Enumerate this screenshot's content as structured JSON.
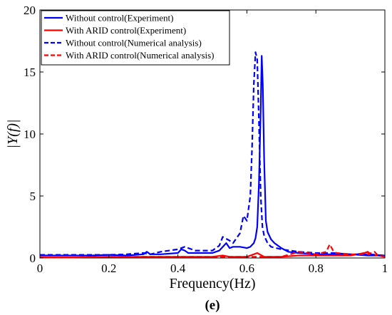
{
  "chart_data": {
    "type": "line",
    "xlabel": "Frequency(Hz)",
    "ylabel": "|Y(f)|",
    "caption": "(e)",
    "xlim": [
      0,
      1
    ],
    "ylim": [
      0,
      20
    ],
    "xticks": [
      0,
      0.2,
      0.4,
      0.6,
      0.8,
      1
    ],
    "yticks": [
      0,
      5,
      10,
      15,
      20
    ],
    "xtick_labels": [
      "0",
      "0.2",
      "0.4",
      "0.6",
      "0.8",
      "1"
    ],
    "ytick_labels": [
      "0",
      "5",
      "10",
      "15",
      "20"
    ],
    "grid": false,
    "legend_position": "top-left",
    "series": [
      {
        "name": "Without control(Experiment)",
        "color": "#0000ff",
        "dash": "solid",
        "x": [
          0,
          0.05,
          0.1,
          0.15,
          0.2,
          0.25,
          0.3,
          0.31,
          0.32,
          0.35,
          0.4,
          0.41,
          0.42,
          0.43,
          0.45,
          0.5,
          0.52,
          0.54,
          0.55,
          0.56,
          0.58,
          0.6,
          0.61,
          0.62,
          0.625,
          0.63,
          0.635,
          0.64,
          0.643,
          0.646,
          0.65,
          0.655,
          0.66,
          0.67,
          0.68,
          0.7,
          0.72,
          0.75,
          0.8,
          0.85,
          0.9,
          0.95,
          1
        ],
        "y": [
          0.2,
          0.2,
          0.2,
          0.2,
          0.25,
          0.2,
          0.3,
          0.5,
          0.3,
          0.3,
          0.4,
          0.7,
          0.6,
          0.4,
          0.4,
          0.4,
          0.6,
          1.2,
          0.8,
          0.9,
          0.9,
          0.8,
          0.9,
          1.2,
          1.6,
          2.5,
          6,
          12,
          16.3,
          14,
          8,
          3,
          2.1,
          1.5,
          1.2,
          0.8,
          0.5,
          0.4,
          0.3,
          0.3,
          0.3,
          0.2,
          0.2
        ]
      },
      {
        "name": "With ARID control(Experiment)",
        "color": "#ff0000",
        "dash": "solid",
        "x": [
          0,
          0.1,
          0.2,
          0.3,
          0.4,
          0.5,
          0.53,
          0.55,
          0.6,
          0.62,
          0.63,
          0.65,
          0.7,
          0.75,
          0.8,
          0.85,
          0.9,
          0.94,
          0.95,
          0.96,
          0.98,
          1
        ],
        "y": [
          0.05,
          0.05,
          0.1,
          0.1,
          0.1,
          0.1,
          0.2,
          0.1,
          0.1,
          0.3,
          0.4,
          0.1,
          0.1,
          0.2,
          0.2,
          0.2,
          0.2,
          0.4,
          0.5,
          0.3,
          0.2,
          0.1
        ]
      },
      {
        "name": "Without control(Numerical analysis)",
        "color": "#0000ff",
        "dash": "dashed",
        "x": [
          0,
          0.05,
          0.1,
          0.15,
          0.2,
          0.25,
          0.3,
          0.32,
          0.35,
          0.4,
          0.42,
          0.45,
          0.5,
          0.52,
          0.53,
          0.55,
          0.56,
          0.58,
          0.59,
          0.6,
          0.61,
          0.615,
          0.62,
          0.625,
          0.63,
          0.635,
          0.64,
          0.645,
          0.65,
          0.66,
          0.67,
          0.7,
          0.75,
          0.8,
          0.85,
          0.9,
          0.95,
          1
        ],
        "y": [
          0.25,
          0.25,
          0.25,
          0.25,
          0.25,
          0.3,
          0.4,
          0.3,
          0.5,
          0.7,
          0.9,
          0.6,
          0.6,
          1.0,
          1.7,
          1.4,
          1.2,
          2.0,
          3.4,
          3.0,
          5.0,
          9.0,
          14.0,
          16.6,
          16.0,
          11.0,
          5.0,
          2.5,
          1.8,
          1.2,
          0.9,
          0.7,
          0.5,
          0.4,
          0.4,
          0.3,
          0.3,
          0.2
        ]
      },
      {
        "name": "With ARID control(Numerical analysis)",
        "color": "#ff0000",
        "dash": "dashed",
        "x": [
          0,
          0.1,
          0.2,
          0.3,
          0.4,
          0.5,
          0.55,
          0.6,
          0.65,
          0.7,
          0.75,
          0.8,
          0.83,
          0.84,
          0.85,
          0.86,
          0.9,
          0.95,
          0.97,
          0.98,
          1
        ],
        "y": [
          0.05,
          0.05,
          0.1,
          0.1,
          0.1,
          0.1,
          0.1,
          0.1,
          0.1,
          0.1,
          0.5,
          0.3,
          0.5,
          1.1,
          0.6,
          0.4,
          0.3,
          0.3,
          0.5,
          0.2,
          0.1
        ]
      }
    ]
  }
}
